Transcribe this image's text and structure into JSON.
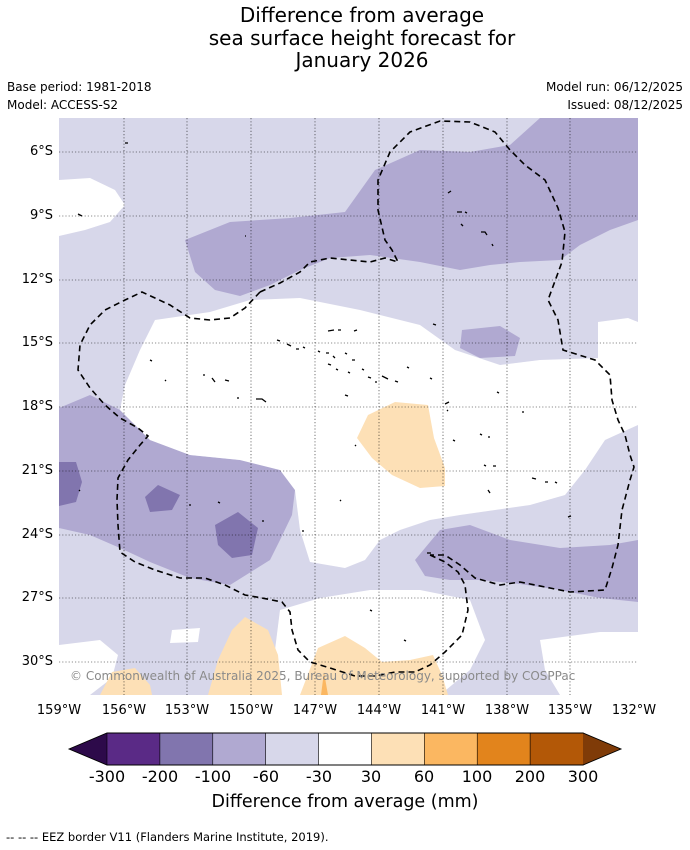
{
  "title": {
    "line1": "Difference from average",
    "line2": "sea surface height forecast for",
    "line3": "January 2026"
  },
  "meta": {
    "base_period": "Base period: 1981-2018",
    "model": "Model: ACCESS-S2",
    "model_run": "Model run: 06/12/2025",
    "issued": "Issued: 08/12/2025"
  },
  "map": {
    "lat_labels": [
      "6°S",
      "9°S",
      "12°S",
      "15°S",
      "18°S",
      "21°S",
      "24°S",
      "27°S",
      "30°S"
    ],
    "lon_labels": [
      "159°W",
      "156°W",
      "153°W",
      "150°W",
      "147°W",
      "144°W",
      "141°W",
      "138°W",
      "135°W",
      "132°W"
    ],
    "copyright": "© Commonwealth of Australia 2025, Bureau of Meteorology, supported by COSPPac",
    "fill_colors": {
      "background": "#d7d7ea",
      "band_minus_100": "#b0a9d1",
      "band_minus_200": "#8175ae",
      "white_band": "#ffffff",
      "band_plus_30": "#fde0b6",
      "band_plus_60": "#fbb761"
    }
  },
  "colorbar": {
    "tick_labels": [
      "-300",
      "-200",
      "-100",
      "-60",
      "-30",
      "30",
      "60",
      "100",
      "200",
      "300"
    ],
    "segment_colors": [
      "#5a2a86",
      "#8175ae",
      "#b0a9d1",
      "#d7d7ea",
      "#ffffff",
      "#fde0b6",
      "#fbb761",
      "#e2841c",
      "#b35807"
    ],
    "extend_low_color": "#2d0a4a",
    "extend_high_color": "#7f3b08",
    "title": "Difference from average (mm)"
  },
  "footnote": "--  --  -- EEZ border V11 (Flanders Marine Institute, 2019)."
}
